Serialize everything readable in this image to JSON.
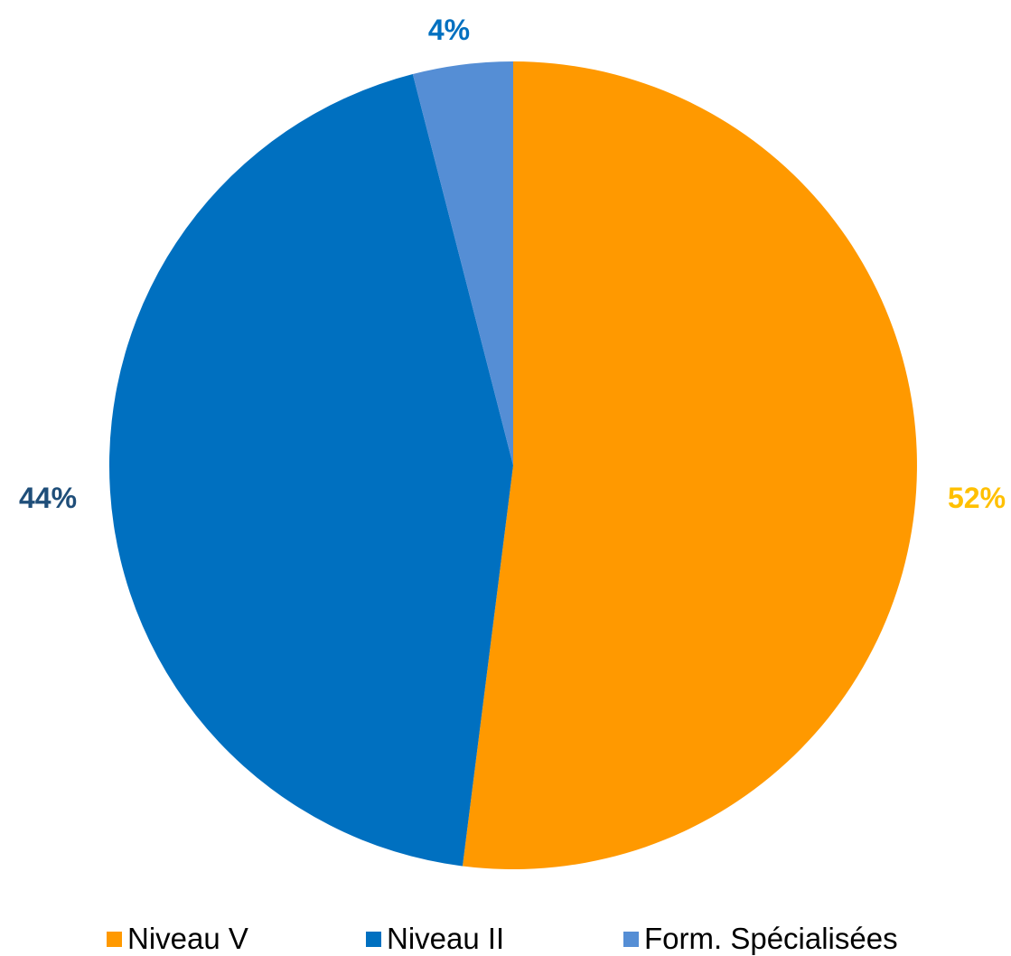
{
  "chart_data": {
    "type": "pie",
    "categories": [
      "Niveau V",
      "Niveau II",
      "Form. Spécialisées"
    ],
    "values": [
      52,
      44,
      4
    ],
    "labels": [
      "52%",
      "44%",
      "4%"
    ],
    "colors": [
      "#FF9900",
      "#0070C0",
      "#558ED5"
    ],
    "label_colors": [
      "#FFC000",
      "#1F4E79",
      "#0070C0"
    ],
    "start_angle": "12 o'clock",
    "direction": "clockwise",
    "legend_position": "bottom"
  }
}
